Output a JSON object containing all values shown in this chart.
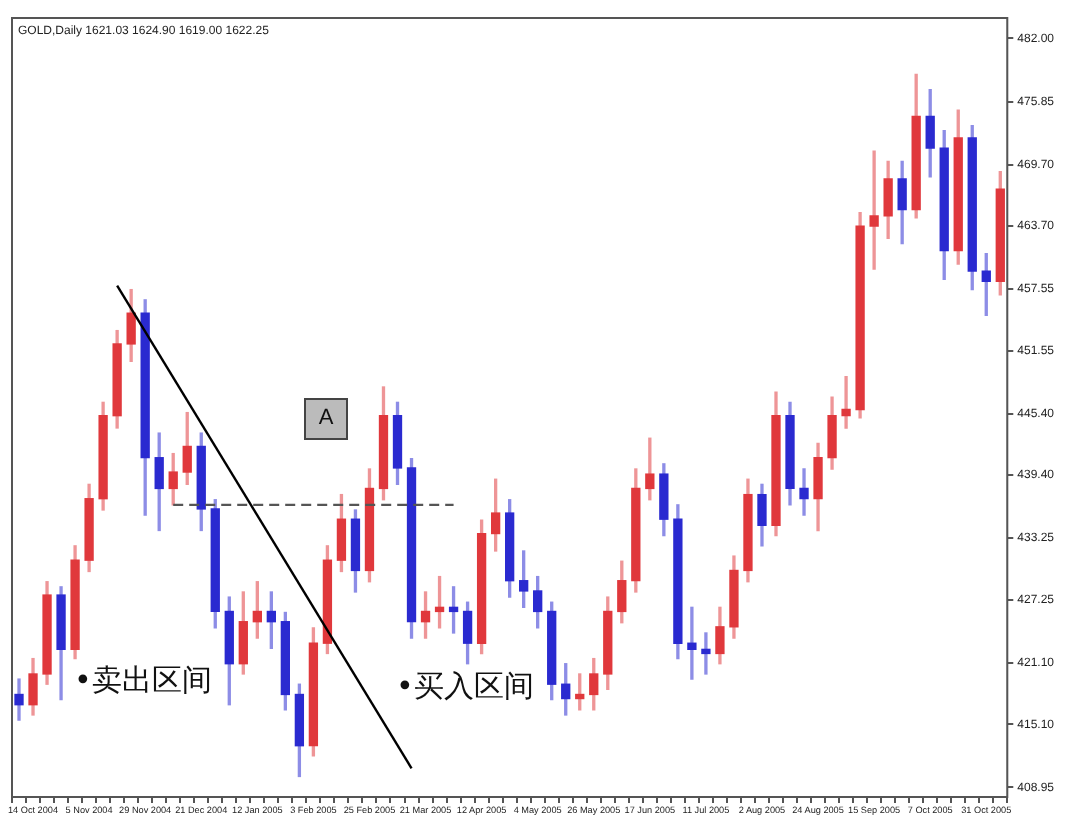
{
  "chart_data": {
    "type": "candlestick",
    "title": "GOLD,Daily 1621.03 1624.90 1619.00 1622.25",
    "categories": [
      null,
      "14 Oct 2004",
      null,
      null,
      null,
      "5 Nov 2004",
      null,
      null,
      null,
      "29 Nov 2004",
      null,
      null,
      null,
      "21 Dec 2004",
      null,
      null,
      null,
      "12 Jan 2005",
      null,
      null,
      null,
      "3 Feb 2005",
      null,
      null,
      null,
      "25 Feb 2005",
      null,
      null,
      null,
      "21 Mar 2005",
      null,
      null,
      null,
      "12 Apr 2005",
      null,
      null,
      null,
      "4 May 2005",
      null,
      null,
      null,
      "26 May 2005",
      null,
      null,
      null,
      "17 Jun 2005",
      null,
      null,
      null,
      "11 Jul 2005",
      null,
      null,
      null,
      "2 Aug 2005",
      null,
      null,
      null,
      "24 Aug 2005",
      null,
      null,
      null,
      "15 Sep 2005",
      null,
      null,
      null,
      "7 Oct 2005",
      null,
      null,
      null,
      "31 Oct 2005",
      null
    ],
    "series": [
      {
        "ohlc": [
          [
            418.0,
            419.5,
            415.5,
            417.0
          ],
          [
            417.0,
            421.5,
            416.0,
            420.0
          ],
          [
            420.0,
            429.0,
            419.0,
            427.7
          ],
          [
            427.7,
            428.5,
            417.5,
            422.4
          ],
          [
            422.4,
            432.5,
            421.5,
            431.1
          ],
          [
            431.1,
            438.5,
            430.0,
            437.1
          ],
          [
            437.1,
            446.5,
            436.0,
            445.2
          ],
          [
            445.2,
            453.5,
            444.0,
            452.2
          ],
          [
            452.2,
            457.5,
            450.5,
            455.2
          ],
          [
            455.2,
            456.5,
            435.5,
            441.1
          ],
          [
            441.1,
            443.5,
            434.0,
            438.1
          ],
          [
            438.1,
            441.5,
            436.5,
            439.7
          ],
          [
            439.7,
            445.5,
            438.5,
            442.2
          ],
          [
            442.2,
            443.5,
            434.0,
            436.1
          ],
          [
            436.1,
            437.0,
            424.5,
            426.1
          ],
          [
            426.1,
            427.5,
            417.0,
            421.0
          ],
          [
            421.0,
            428.0,
            420.0,
            425.1
          ],
          [
            425.1,
            429.0,
            423.5,
            426.1
          ],
          [
            426.1,
            428.0,
            422.5,
            425.1
          ],
          [
            425.1,
            426.0,
            416.5,
            418.0
          ],
          [
            418.0,
            419.0,
            410.0,
            413.0
          ],
          [
            413.0,
            424.5,
            412.0,
            423.0
          ],
          [
            423.0,
            432.5,
            422.0,
            431.1
          ],
          [
            431.1,
            437.5,
            430.0,
            435.1
          ],
          [
            435.1,
            436.0,
            428.0,
            430.1
          ],
          [
            430.1,
            440.0,
            429.0,
            438.1
          ],
          [
            438.1,
            448.0,
            437.0,
            445.2
          ],
          [
            445.2,
            446.5,
            438.5,
            440.1
          ],
          [
            440.1,
            441.0,
            423.5,
            425.1
          ],
          [
            425.1,
            428.0,
            423.5,
            426.1
          ],
          [
            426.1,
            429.5,
            424.5,
            426.5
          ],
          [
            426.5,
            428.5,
            424.0,
            426.1
          ],
          [
            426.1,
            427.0,
            421.0,
            423.0
          ],
          [
            423.0,
            435.0,
            422.0,
            433.7
          ],
          [
            433.7,
            439.0,
            432.0,
            435.7
          ],
          [
            435.7,
            437.0,
            427.5,
            429.1
          ],
          [
            429.1,
            432.0,
            426.5,
            428.1
          ],
          [
            428.1,
            429.5,
            424.5,
            426.1
          ],
          [
            426.1,
            427.0,
            417.5,
            419.0
          ],
          [
            419.0,
            421.0,
            416.0,
            417.6
          ],
          [
            417.6,
            420.0,
            416.5,
            418.0
          ],
          [
            418.0,
            421.5,
            416.5,
            420.0
          ],
          [
            420.0,
            427.5,
            418.5,
            426.1
          ],
          [
            426.1,
            431.0,
            425.0,
            429.1
          ],
          [
            429.1,
            440.0,
            428.0,
            438.1
          ],
          [
            438.1,
            443.0,
            437.0,
            439.5
          ],
          [
            439.5,
            440.5,
            433.5,
            435.1
          ],
          [
            435.1,
            436.5,
            421.5,
            423.0
          ],
          [
            423.0,
            426.5,
            419.5,
            422.4
          ],
          [
            422.4,
            424.0,
            420.0,
            422.0
          ],
          [
            422.0,
            426.5,
            421.0,
            424.6
          ],
          [
            424.6,
            431.5,
            423.5,
            430.1
          ],
          [
            430.1,
            439.0,
            429.0,
            437.5
          ],
          [
            437.5,
            438.5,
            432.5,
            434.5
          ],
          [
            434.5,
            447.5,
            433.5,
            445.2
          ],
          [
            445.2,
            446.5,
            436.5,
            438.1
          ],
          [
            438.1,
            440.0,
            435.5,
            437.1
          ],
          [
            437.1,
            442.5,
            434.0,
            441.1
          ],
          [
            441.1,
            447.0,
            440.0,
            445.2
          ],
          [
            445.2,
            449.0,
            444.0,
            445.8
          ],
          [
            445.8,
            465.0,
            445.0,
            463.7
          ],
          [
            463.7,
            471.0,
            459.5,
            464.7
          ],
          [
            464.7,
            470.0,
            462.5,
            468.3
          ],
          [
            468.3,
            470.0,
            462.0,
            465.3
          ],
          [
            465.3,
            478.5,
            464.5,
            474.4
          ],
          [
            474.4,
            477.0,
            468.5,
            471.3
          ],
          [
            471.3,
            473.0,
            458.5,
            461.3
          ],
          [
            461.3,
            475.0,
            460.0,
            472.3
          ],
          [
            472.3,
            473.5,
            457.5,
            459.3
          ],
          [
            459.3,
            461.0,
            455.0,
            458.3
          ],
          [
            458.3,
            469.0,
            457.0,
            467.3
          ]
        ],
        "colors": [
          "#2a2ad0",
          "#e0383c",
          "#e0383c",
          "#2a2ad0",
          "#e0383c",
          "#e0383c",
          "#e0383c",
          "#e0383c",
          "#e0383c",
          "#2a2ad0",
          "#2a2ad0",
          "#e0383c",
          "#e0383c",
          "#2a2ad0",
          "#2a2ad0",
          "#2a2ad0",
          "#e0383c",
          "#e0383c",
          "#2a2ad0",
          "#2a2ad0",
          "#2a2ad0",
          "#e0383c",
          "#e0383c",
          "#e0383c",
          "#2a2ad0",
          "#e0383c",
          "#e0383c",
          "#2a2ad0",
          "#2a2ad0",
          "#e0383c",
          "#e0383c",
          "#2a2ad0",
          "#2a2ad0",
          "#e0383c",
          "#e0383c",
          "#2a2ad0",
          "#2a2ad0",
          "#2a2ad0",
          "#2a2ad0",
          "#2a2ad0",
          "#e0383c",
          "#e0383c",
          "#e0383c",
          "#e0383c",
          "#e0383c",
          "#e0383c",
          "#2a2ad0",
          "#2a2ad0",
          "#2a2ad0",
          "#2a2ad0",
          "#e0383c",
          "#e0383c",
          "#e0383c",
          "#2a2ad0",
          "#e0383c",
          "#2a2ad0",
          "#2a2ad0",
          "#e0383c",
          "#e0383c",
          "#e0383c",
          "#e0383c",
          "#e0383c",
          "#e0383c",
          "#2a2ad0",
          "#e0383c",
          "#2a2ad0",
          "#2a2ad0",
          "#e0383c",
          "#2a2ad0",
          "#2a2ad0",
          "#e0383c"
        ]
      },
      {
        "type": "line",
        "color": "#000000",
        "line_style": "solid",
        "values": [
          null,
          null,
          null,
          null,
          null,
          null,
          null,
          457.9,
          null,
          null,
          null,
          null,
          null,
          null,
          null,
          null,
          null,
          null,
          null,
          null,
          null,
          null,
          null,
          null,
          null,
          null,
          null,
          null,
          410.8,
          null,
          null,
          null,
          null,
          null,
          null,
          null,
          null,
          null,
          null,
          null,
          null,
          null,
          null,
          null,
          null,
          null,
          null,
          null,
          null,
          null,
          null,
          null,
          null,
          null,
          null,
          null,
          null,
          null,
          null,
          null,
          null,
          null,
          null,
          null,
          null,
          null,
          null,
          null,
          null,
          null,
          null
        ]
      },
      {
        "type": "line",
        "color": "#555555",
        "line_style": "dashed",
        "values": [
          null,
          null,
          null,
          null,
          null,
          null,
          null,
          null,
          null,
          null,
          null,
          436.5,
          null,
          null,
          null,
          null,
          null,
          null,
          null,
          null,
          null,
          null,
          null,
          null,
          null,
          null,
          null,
          null,
          null,
          null,
          null,
          436.5,
          null,
          null,
          null,
          null,
          null,
          null,
          null,
          null,
          null,
          null,
          null,
          null,
          null,
          null,
          null,
          null,
          null,
          null,
          null,
          null,
          null,
          null,
          null,
          null,
          null,
          null,
          null,
          null,
          null,
          null,
          null,
          null,
          null,
          null,
          null,
          null,
          null,
          null,
          null
        ]
      }
    ],
    "ylim": [
      408.0,
      484.0
    ],
    "yticks": [
      {
        "value": 408.95,
        "label": "408.95"
      },
      {
        "value": 415.1,
        "label": "415.10"
      },
      {
        "value": 421.1,
        "label": "421.10"
      },
      {
        "value": 427.25,
        "label": "427.25"
      },
      {
        "value": 433.25,
        "label": "433.25"
      },
      {
        "value": 439.4,
        "label": "439.40"
      },
      {
        "value": 445.4,
        "label": "445.40"
      },
      {
        "value": 451.55,
        "label": "451.55"
      },
      {
        "value": 457.55,
        "label": "457.55"
      },
      {
        "value": 463.7,
        "label": "463.70"
      },
      {
        "value": 469.7,
        "label": "469.70"
      },
      {
        "value": 475.85,
        "label": "475.85"
      },
      {
        "value": 482,
        "label": "482.00"
      }
    ],
    "grid": false,
    "legend": false,
    "annotations": [
      "A",
      "•卖出区间",
      "•买入区间"
    ]
  }
}
